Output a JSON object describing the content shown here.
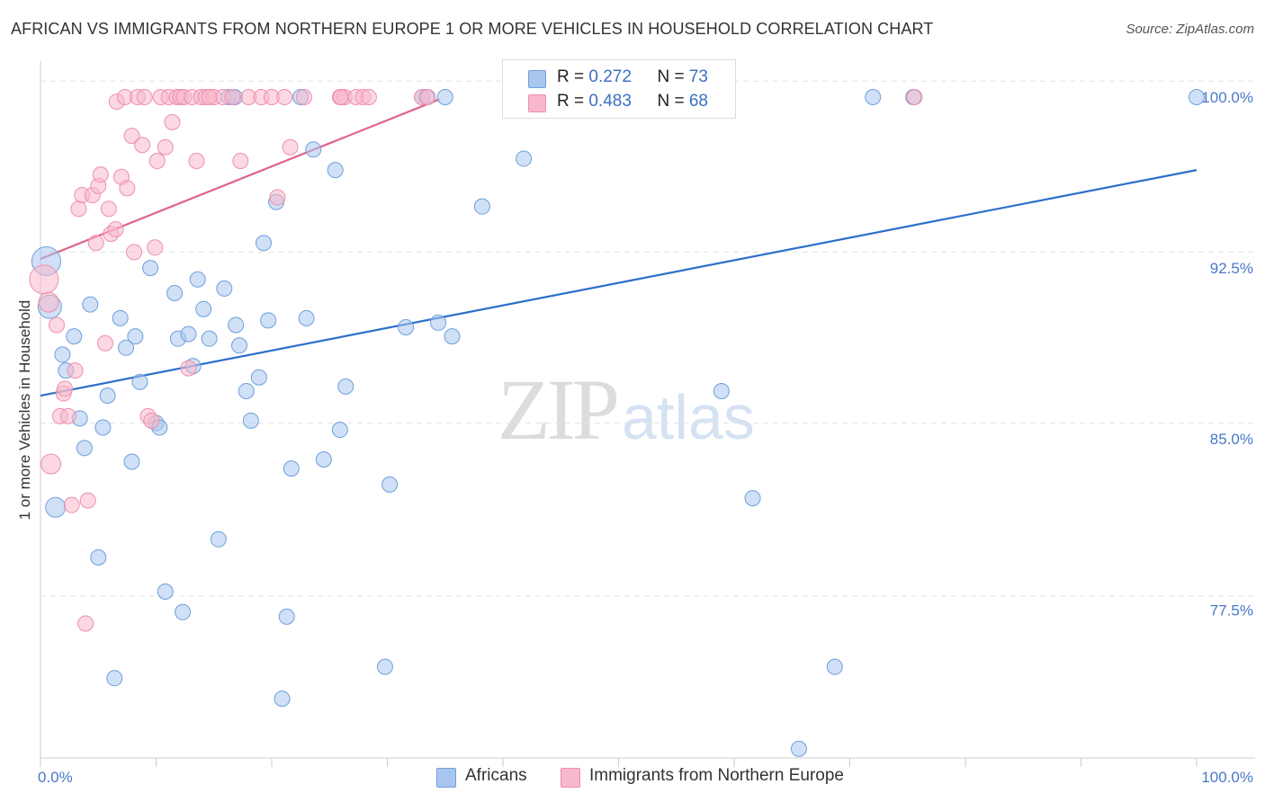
{
  "header": {
    "title": "AFRICAN VS IMMIGRANTS FROM NORTHERN EUROPE 1 OR MORE VEHICLES IN HOUSEHOLD CORRELATION CHART",
    "source": "Source: ZipAtlas.com"
  },
  "watermark": {
    "zip": "ZIP",
    "atlas": "atlas"
  },
  "legend": {
    "rows": [
      {
        "r_label": "R = ",
        "r_value": "0.272",
        "n_label": "N = ",
        "n_value": "73"
      },
      {
        "r_label": "R = ",
        "r_value": "0.483",
        "n_label": "N = ",
        "n_value": "68"
      }
    ]
  },
  "bottom_legend": {
    "africans": "Africans",
    "immigrants": "Immigrants from Northern Europe"
  },
  "colors": {
    "blue_fill": "#a9c6ee",
    "blue_stroke": "#6f9fdc",
    "blue_line": "#2c6fcb",
    "pink_fill": "#f7b8cb",
    "pink_stroke": "#ee8fae",
    "pink_line": "#e0628c",
    "grid": "#e3e3e3",
    "axis": "#cccccc",
    "tick_text": "#4a78c8"
  },
  "chart_data": {
    "type": "scatter",
    "title": "AFRICAN VS IMMIGRANTS FROM NORTHERN EUROPE 1 OR MORE VEHICLES IN HOUSEHOLD CORRELATION CHART",
    "xlabel": "",
    "ylabel": "1 or more Vehicles in Household",
    "xlim": [
      0,
      100
    ],
    "ylim": [
      71.0,
      101.5
    ],
    "x_tick_labels": [
      {
        "value": 0,
        "label": "0.0%"
      },
      {
        "value": 100,
        "label": "100.0%"
      }
    ],
    "y_tick_labels": [
      {
        "value": 100,
        "label": "100.0%"
      },
      {
        "value": 92.5,
        "label": "92.5%"
      },
      {
        "value": 85,
        "label": "85.0%"
      },
      {
        "value": 77.5,
        "label": "77.5%"
      }
    ],
    "y_gridlines": [
      100.7,
      93.2,
      85.7,
      78.1
    ],
    "series": [
      {
        "name": "Africans",
        "color": "#a9c6ee",
        "R": 0.272,
        "N": 73,
        "trend": {
          "x": [
            0,
            100
          ],
          "y": [
            86.9,
            96.8
          ]
        },
        "points": [
          {
            "x": 0.5,
            "y": 92.8,
            "s": "xl"
          },
          {
            "x": 0.8,
            "y": 90.8,
            "s": "l"
          },
          {
            "x": 1.3,
            "y": 82.0,
            "s": "m"
          },
          {
            "x": 1.9,
            "y": 88.7,
            "s": "s"
          },
          {
            "x": 2.2,
            "y": 88.0,
            "s": "s"
          },
          {
            "x": 2.9,
            "y": 89.5,
            "s": "s"
          },
          {
            "x": 3.4,
            "y": 85.9,
            "s": "s"
          },
          {
            "x": 3.8,
            "y": 84.6,
            "s": "s"
          },
          {
            "x": 4.3,
            "y": 90.9,
            "s": "s"
          },
          {
            "x": 5.0,
            "y": 79.8,
            "s": "s"
          },
          {
            "x": 5.4,
            "y": 85.5,
            "s": "s"
          },
          {
            "x": 5.8,
            "y": 86.9,
            "s": "s"
          },
          {
            "x": 6.4,
            "y": 74.5,
            "s": "s"
          },
          {
            "x": 6.9,
            "y": 90.3,
            "s": "s"
          },
          {
            "x": 7.4,
            "y": 89.0,
            "s": "s"
          },
          {
            "x": 7.9,
            "y": 84.0,
            "s": "s"
          },
          {
            "x": 8.2,
            "y": 89.5,
            "s": "s"
          },
          {
            "x": 8.6,
            "y": 87.5,
            "s": "s"
          },
          {
            "x": 9.5,
            "y": 92.5,
            "s": "s"
          },
          {
            "x": 10.0,
            "y": 85.7,
            "s": "s"
          },
          {
            "x": 10.3,
            "y": 85.5,
            "s": "s"
          },
          {
            "x": 10.8,
            "y": 78.3,
            "s": "s"
          },
          {
            "x": 11.6,
            "y": 91.4,
            "s": "s"
          },
          {
            "x": 11.9,
            "y": 89.4,
            "s": "s"
          },
          {
            "x": 12.3,
            "y": 77.4,
            "s": "s"
          },
          {
            "x": 12.8,
            "y": 89.6,
            "s": "s"
          },
          {
            "x": 13.2,
            "y": 88.2,
            "s": "s"
          },
          {
            "x": 13.6,
            "y": 92.0,
            "s": "s"
          },
          {
            "x": 14.1,
            "y": 90.7,
            "s": "s"
          },
          {
            "x": 14.6,
            "y": 89.4,
            "s": "s"
          },
          {
            "x": 15.4,
            "y": 80.6,
            "s": "s"
          },
          {
            "x": 15.9,
            "y": 91.6,
            "s": "s"
          },
          {
            "x": 16.3,
            "y": 100.0,
            "s": "s"
          },
          {
            "x": 16.9,
            "y": 90.0,
            "s": "s"
          },
          {
            "x": 17.2,
            "y": 89.1,
            "s": "s"
          },
          {
            "x": 17.8,
            "y": 87.1,
            "s": "s"
          },
          {
            "x": 18.2,
            "y": 85.8,
            "s": "s"
          },
          {
            "x": 18.9,
            "y": 87.7,
            "s": "s"
          },
          {
            "x": 19.3,
            "y": 93.6,
            "s": "s"
          },
          {
            "x": 19.7,
            "y": 90.2,
            "s": "s"
          },
          {
            "x": 20.4,
            "y": 95.4,
            "s": "s"
          },
          {
            "x": 20.9,
            "y": 73.6,
            "s": "s"
          },
          {
            "x": 21.3,
            "y": 77.2,
            "s": "s"
          },
          {
            "x": 21.7,
            "y": 83.7,
            "s": "s"
          },
          {
            "x": 22.5,
            "y": 100.0,
            "s": "s"
          },
          {
            "x": 23.0,
            "y": 90.3,
            "s": "s"
          },
          {
            "x": 23.6,
            "y": 97.7,
            "s": "s"
          },
          {
            "x": 24.5,
            "y": 84.1,
            "s": "s"
          },
          {
            "x": 25.5,
            "y": 96.8,
            "s": "s"
          },
          {
            "x": 25.9,
            "y": 85.4,
            "s": "s"
          },
          {
            "x": 26.4,
            "y": 87.3,
            "s": "s"
          },
          {
            "x": 29.8,
            "y": 75.0,
            "s": "s"
          },
          {
            "x": 30.2,
            "y": 83.0,
            "s": "s"
          },
          {
            "x": 31.6,
            "y": 89.9,
            "s": "s"
          },
          {
            "x": 33.0,
            "y": 100.0,
            "s": "s"
          },
          {
            "x": 33.4,
            "y": 100.0,
            "s": "s"
          },
          {
            "x": 34.4,
            "y": 90.1,
            "s": "s"
          },
          {
            "x": 35.0,
            "y": 100.0,
            "s": "s"
          },
          {
            "x": 35.6,
            "y": 89.5,
            "s": "s"
          },
          {
            "x": 38.2,
            "y": 95.2,
            "s": "s"
          },
          {
            "x": 41.8,
            "y": 97.3,
            "s": "s"
          },
          {
            "x": 42.5,
            "y": 100.0,
            "s": "s"
          },
          {
            "x": 54.3,
            "y": 100.0,
            "s": "s"
          },
          {
            "x": 55.8,
            "y": 100.0,
            "s": "s"
          },
          {
            "x": 58.5,
            "y": 100.0,
            "s": "s"
          },
          {
            "x": 58.9,
            "y": 87.1,
            "s": "s"
          },
          {
            "x": 61.6,
            "y": 82.4,
            "s": "s"
          },
          {
            "x": 68.7,
            "y": 75.0,
            "s": "s"
          },
          {
            "x": 65.6,
            "y": 71.4,
            "s": "s"
          },
          {
            "x": 72.0,
            "y": 100.0,
            "s": "s"
          },
          {
            "x": 75.5,
            "y": 100.0,
            "s": "s"
          },
          {
            "x": 100.0,
            "y": 100.0,
            "s": "s"
          },
          {
            "x": 16.8,
            "y": 100.0,
            "s": "s"
          }
        ]
      },
      {
        "name": "Immigrants from Northern Europe",
        "color": "#f7b8cb",
        "R": 0.483,
        "N": 68,
        "trend": {
          "x": [
            0,
            34.5
          ],
          "y": [
            92.9,
            99.9
          ]
        },
        "points": [
          {
            "x": 0.3,
            "y": 92.0,
            "s": "xl"
          },
          {
            "x": 0.7,
            "y": 91.0,
            "s": "m"
          },
          {
            "x": 0.9,
            "y": 83.9,
            "s": "m"
          },
          {
            "x": 1.4,
            "y": 90.0,
            "s": "s"
          },
          {
            "x": 1.7,
            "y": 86.0,
            "s": "s"
          },
          {
            "x": 2.0,
            "y": 87.0,
            "s": "s"
          },
          {
            "x": 2.4,
            "y": 86.0,
            "s": "s"
          },
          {
            "x": 2.7,
            "y": 82.1,
            "s": "s"
          },
          {
            "x": 3.0,
            "y": 88.0,
            "s": "s"
          },
          {
            "x": 3.3,
            "y": 95.1,
            "s": "s"
          },
          {
            "x": 3.6,
            "y": 95.7,
            "s": "s"
          },
          {
            "x": 3.9,
            "y": 76.9,
            "s": "s"
          },
          {
            "x": 4.1,
            "y": 82.3,
            "s": "s"
          },
          {
            "x": 4.5,
            "y": 95.7,
            "s": "s"
          },
          {
            "x": 4.8,
            "y": 93.6,
            "s": "s"
          },
          {
            "x": 5.0,
            "y": 96.1,
            "s": "s"
          },
          {
            "x": 5.2,
            "y": 96.6,
            "s": "s"
          },
          {
            "x": 5.6,
            "y": 89.2,
            "s": "s"
          },
          {
            "x": 5.9,
            "y": 95.1,
            "s": "s"
          },
          {
            "x": 6.1,
            "y": 94.0,
            "s": "s"
          },
          {
            "x": 6.5,
            "y": 94.2,
            "s": "s"
          },
          {
            "x": 6.6,
            "y": 99.8,
            "s": "s"
          },
          {
            "x": 7.0,
            "y": 96.5,
            "s": "s"
          },
          {
            "x": 7.3,
            "y": 100.0,
            "s": "s"
          },
          {
            "x": 7.5,
            "y": 96.0,
            "s": "s"
          },
          {
            "x": 7.9,
            "y": 98.3,
            "s": "s"
          },
          {
            "x": 8.1,
            "y": 93.2,
            "s": "s"
          },
          {
            "x": 8.4,
            "y": 100.0,
            "s": "s"
          },
          {
            "x": 8.8,
            "y": 97.9,
            "s": "s"
          },
          {
            "x": 9.0,
            "y": 100.0,
            "s": "s"
          },
          {
            "x": 9.3,
            "y": 86.0,
            "s": "s"
          },
          {
            "x": 9.6,
            "y": 85.8,
            "s": "s"
          },
          {
            "x": 9.9,
            "y": 93.4,
            "s": "s"
          },
          {
            "x": 10.1,
            "y": 97.2,
            "s": "s"
          },
          {
            "x": 10.4,
            "y": 100.0,
            "s": "s"
          },
          {
            "x": 10.8,
            "y": 97.8,
            "s": "s"
          },
          {
            "x": 11.1,
            "y": 100.0,
            "s": "s"
          },
          {
            "x": 11.4,
            "y": 98.9,
            "s": "s"
          },
          {
            "x": 11.8,
            "y": 100.0,
            "s": "s"
          },
          {
            "x": 12.1,
            "y": 100.0,
            "s": "s"
          },
          {
            "x": 12.4,
            "y": 100.0,
            "s": "s"
          },
          {
            "x": 12.8,
            "y": 88.1,
            "s": "s"
          },
          {
            "x": 13.1,
            "y": 100.0,
            "s": "s"
          },
          {
            "x": 13.5,
            "y": 97.2,
            "s": "s"
          },
          {
            "x": 13.9,
            "y": 100.0,
            "s": "s"
          },
          {
            "x": 14.3,
            "y": 100.0,
            "s": "s"
          },
          {
            "x": 15.0,
            "y": 100.0,
            "s": "s"
          },
          {
            "x": 15.8,
            "y": 100.0,
            "s": "s"
          },
          {
            "x": 16.6,
            "y": 100.0,
            "s": "s"
          },
          {
            "x": 17.3,
            "y": 97.2,
            "s": "s"
          },
          {
            "x": 18.0,
            "y": 100.0,
            "s": "s"
          },
          {
            "x": 19.1,
            "y": 100.0,
            "s": "s"
          },
          {
            "x": 20.0,
            "y": 100.0,
            "s": "s"
          },
          {
            "x": 20.5,
            "y": 95.6,
            "s": "s"
          },
          {
            "x": 21.1,
            "y": 100.0,
            "s": "s"
          },
          {
            "x": 21.6,
            "y": 97.8,
            "s": "s"
          },
          {
            "x": 22.8,
            "y": 100.0,
            "s": "s"
          },
          {
            "x": 25.9,
            "y": 100.0,
            "s": "s"
          },
          {
            "x": 26.3,
            "y": 100.0,
            "s": "s"
          },
          {
            "x": 27.3,
            "y": 100.0,
            "s": "s"
          },
          {
            "x": 27.9,
            "y": 100.0,
            "s": "s"
          },
          {
            "x": 28.4,
            "y": 100.0,
            "s": "s"
          },
          {
            "x": 33.0,
            "y": 100.0,
            "s": "s"
          },
          {
            "x": 33.5,
            "y": 100.0,
            "s": "s"
          },
          {
            "x": 75.6,
            "y": 100.0,
            "s": "s"
          },
          {
            "x": 2.1,
            "y": 87.2,
            "s": "s"
          },
          {
            "x": 26.0,
            "y": 100.0,
            "s": "s"
          },
          {
            "x": 14.6,
            "y": 100.0,
            "s": "s"
          }
        ]
      }
    ]
  }
}
